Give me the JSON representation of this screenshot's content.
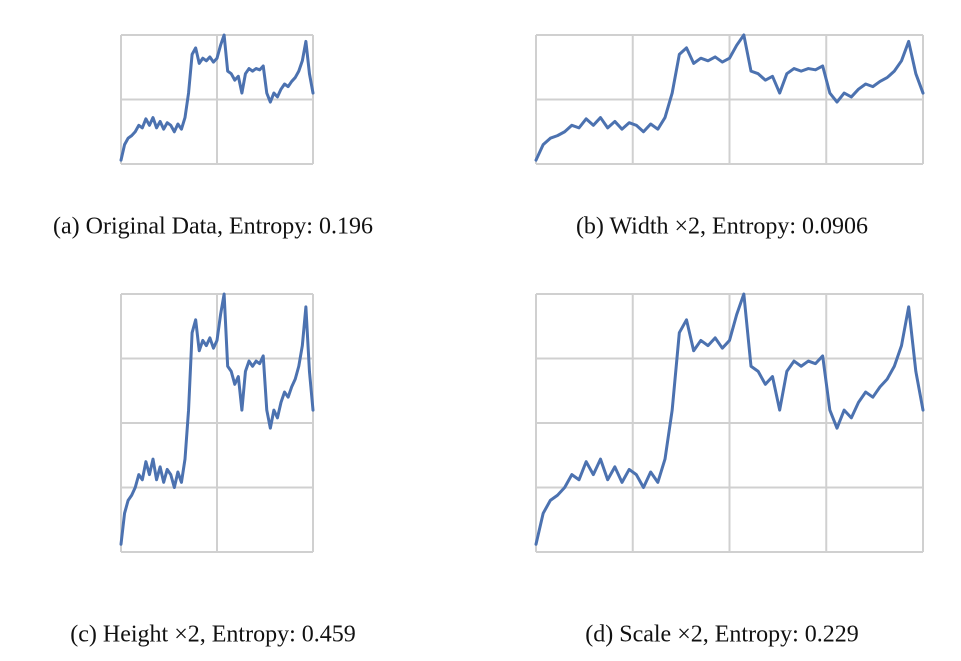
{
  "chart_data": [
    {
      "type": "line",
      "caption": "(a) Original Data, Entropy: 0.196",
      "color": "#4c72b0",
      "grid": true,
      "xlim": [
        0,
        54
      ],
      "xticks": [
        0,
        27,
        54
      ],
      "ylim": [
        0,
        1
      ],
      "yticks": [
        0,
        0.5,
        1
      ],
      "values": [
        0.03,
        0.15,
        0.2,
        0.22,
        0.25,
        0.3,
        0.28,
        0.35,
        0.3,
        0.36,
        0.28,
        0.33,
        0.27,
        0.32,
        0.3,
        0.25,
        0.31,
        0.27,
        0.36,
        0.55,
        0.85,
        0.9,
        0.78,
        0.82,
        0.8,
        0.83,
        0.79,
        0.82,
        0.92,
        1.0,
        0.72,
        0.7,
        0.65,
        0.68,
        0.55,
        0.7,
        0.74,
        0.72,
        0.74,
        0.73,
        0.76,
        0.55,
        0.48,
        0.55,
        0.52,
        0.58,
        0.62,
        0.6,
        0.64,
        0.67,
        0.72,
        0.8,
        0.95,
        0.7,
        0.55
      ]
    },
    {
      "type": "line",
      "caption": "(b) Width ×2, Entropy: 0.0906",
      "color": "#4c72b0",
      "grid": true,
      "xlim": [
        0,
        54
      ],
      "xticks": [
        0,
        13.5,
        27,
        40.5,
        54
      ],
      "ylim": [
        0,
        1
      ],
      "yticks": [
        0,
        0.5,
        1
      ],
      "values": [
        0.03,
        0.15,
        0.2,
        0.22,
        0.25,
        0.3,
        0.28,
        0.35,
        0.3,
        0.36,
        0.28,
        0.33,
        0.27,
        0.32,
        0.3,
        0.25,
        0.31,
        0.27,
        0.36,
        0.55,
        0.85,
        0.9,
        0.78,
        0.82,
        0.8,
        0.83,
        0.79,
        0.82,
        0.92,
        1.0,
        0.72,
        0.7,
        0.65,
        0.68,
        0.55,
        0.7,
        0.74,
        0.72,
        0.74,
        0.73,
        0.76,
        0.55,
        0.48,
        0.55,
        0.52,
        0.58,
        0.62,
        0.6,
        0.64,
        0.67,
        0.72,
        0.8,
        0.95,
        0.7,
        0.55
      ]
    },
    {
      "type": "line",
      "caption": "(c) Height ×2, Entropy: 0.459",
      "color": "#4c72b0",
      "grid": true,
      "xlim": [
        0,
        54
      ],
      "xticks": [
        0,
        27,
        54
      ],
      "ylim": [
        0,
        1
      ],
      "yticks": [
        0,
        0.25,
        0.5,
        0.75,
        1
      ],
      "values": [
        0.03,
        0.15,
        0.2,
        0.22,
        0.25,
        0.3,
        0.28,
        0.35,
        0.3,
        0.36,
        0.28,
        0.33,
        0.27,
        0.32,
        0.3,
        0.25,
        0.31,
        0.27,
        0.36,
        0.55,
        0.85,
        0.9,
        0.78,
        0.82,
        0.8,
        0.83,
        0.79,
        0.82,
        0.92,
        1.0,
        0.72,
        0.7,
        0.65,
        0.68,
        0.55,
        0.7,
        0.74,
        0.72,
        0.74,
        0.73,
        0.76,
        0.55,
        0.48,
        0.55,
        0.52,
        0.58,
        0.62,
        0.6,
        0.64,
        0.67,
        0.72,
        0.8,
        0.95,
        0.7,
        0.55
      ]
    },
    {
      "type": "line",
      "caption": "(d) Scale ×2, Entropy: 0.229",
      "color": "#4c72b0",
      "grid": true,
      "xlim": [
        0,
        54
      ],
      "xticks": [
        0,
        13.5,
        27,
        40.5,
        54
      ],
      "ylim": [
        0,
        1
      ],
      "yticks": [
        0,
        0.25,
        0.5,
        0.75,
        1
      ],
      "values": [
        0.03,
        0.15,
        0.2,
        0.22,
        0.25,
        0.3,
        0.28,
        0.35,
        0.3,
        0.36,
        0.28,
        0.33,
        0.27,
        0.32,
        0.3,
        0.25,
        0.31,
        0.27,
        0.36,
        0.55,
        0.85,
        0.9,
        0.78,
        0.82,
        0.8,
        0.83,
        0.79,
        0.82,
        0.92,
        1.0,
        0.72,
        0.7,
        0.65,
        0.68,
        0.55,
        0.7,
        0.74,
        0.72,
        0.74,
        0.73,
        0.76,
        0.55,
        0.48,
        0.55,
        0.52,
        0.58,
        0.62,
        0.6,
        0.64,
        0.67,
        0.72,
        0.8,
        0.95,
        0.7,
        0.55
      ]
    }
  ]
}
